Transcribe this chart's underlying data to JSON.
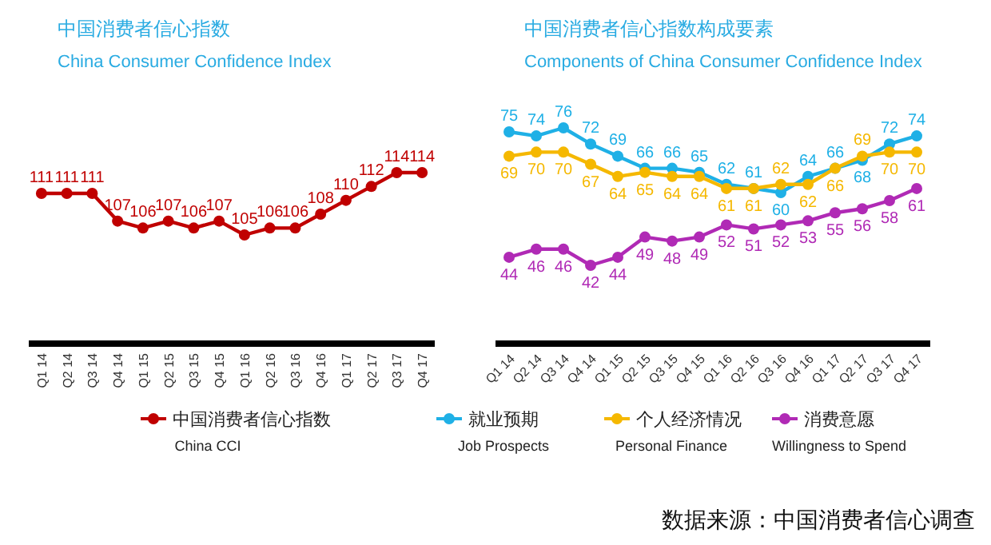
{
  "chart_data": [
    {
      "type": "line",
      "title": "中国消费者信心指数",
      "subtitle": "China  Consumer Confidence Index",
      "categories": [
        "Q1 14",
        "Q2 14",
        "Q3 14",
        "Q4 14",
        "Q1 15",
        "Q2 15",
        "Q3 15",
        "Q4 15",
        "Q1 16",
        "Q2 16",
        "Q3 16",
        "Q4 16",
        "Q1 17",
        "Q2 17",
        "Q3 17",
        "Q4 17"
      ],
      "series": [
        {
          "name": "中国消费者信心指数\nChina CCI",
          "color": "#c00000",
          "values": [
            111,
            111,
            111,
            107,
            106,
            107,
            106,
            107,
            105,
            106,
            106,
            108,
            110,
            112,
            114,
            114
          ]
        }
      ],
      "data_labels": true,
      "marker": "circle",
      "legend": "bottom"
    },
    {
      "type": "line",
      "title": "中国消费者信心指数构成要素",
      "subtitle": "Components of China  Consumer Confidence Index",
      "categories": [
        "Q1 14",
        "Q2 14",
        "Q3 14",
        "Q4 14",
        "Q1 15",
        "Q2 15",
        "Q3 15",
        "Q4 15",
        "Q1 16",
        "Q2 16",
        "Q3 16",
        "Q4 16",
        "Q1 17",
        "Q2 17",
        "Q3 17",
        "Q4 17"
      ],
      "series": [
        {
          "name": "就业预期\nJob Prospects",
          "color": "#1fb0e6",
          "values": [
            75,
            74,
            76,
            72,
            69,
            66,
            66,
            65,
            62,
            61,
            60,
            64,
            66,
            68,
            72,
            74
          ]
        },
        {
          "name": "个人经济情况\nPersonal Finance",
          "color": "#f5b800",
          "values": [
            69,
            70,
            70,
            67,
            64,
            65,
            64,
            64,
            61,
            61,
            62,
            62,
            66,
            69,
            70,
            70
          ]
        },
        {
          "name": "消费意愿\nWillingness to Spend",
          "color": "#b02ab5",
          "values": [
            44,
            46,
            46,
            42,
            44,
            49,
            48,
            49,
            52,
            51,
            52,
            53,
            55,
            56,
            58,
            61
          ]
        }
      ],
      "data_labels": true,
      "marker": "circle",
      "legend": "bottom",
      "annotations": [
        "数据来源：中国消费者信心调查"
      ]
    }
  ]
}
